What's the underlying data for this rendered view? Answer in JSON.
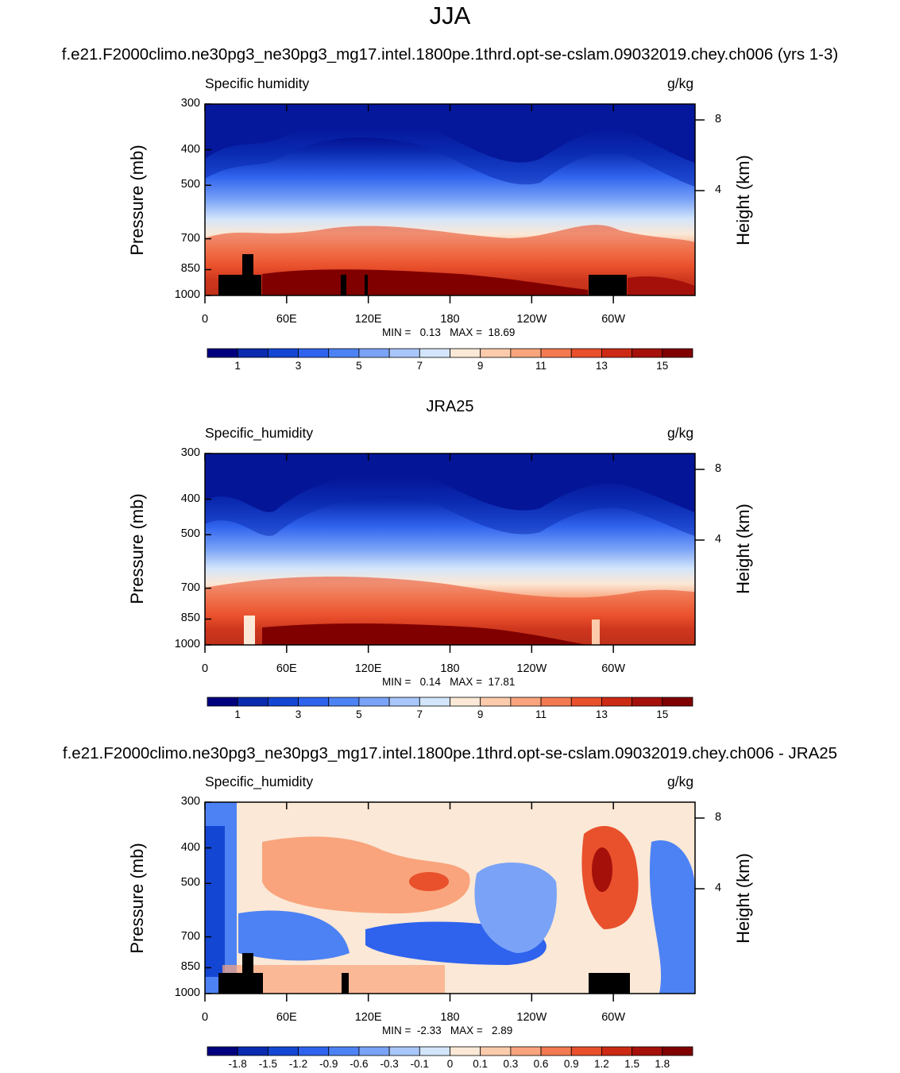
{
  "season_title": "JJA",
  "panels": [
    {
      "title": "f.e21.F2000climo.ne30pg3_ne30pg3_mg17.intel.1800pe.1thrd.opt-se-cslam.09032019.chey.ch006 (yrs 1-3)",
      "variable": "Specific humidity",
      "units": "g/kg",
      "stats": "MIN =   0.13   MAX =  18.69"
    },
    {
      "title": "JRA25",
      "variable": "Specific_humidity",
      "units": "g/kg",
      "stats": "MIN =   0.14   MAX =  17.81"
    },
    {
      "title": "f.e21.F2000climo.ne30pg3_ne30pg3_mg17.intel.1800pe.1thrd.opt-se-cslam.09032019.chey.ch006 - JRA25",
      "variable": "Specific_humidity",
      "units": "g/kg",
      "stats": "MIN =  -2.33   MAX =   2.89"
    }
  ],
  "axes": {
    "ylabel": "Pressure (mb)",
    "ylabel_right": "Height (km)",
    "pressure_ticks": [
      "300",
      "400",
      "500",
      "700",
      "850",
      "1000"
    ],
    "height_ticks": [
      "8",
      "4"
    ],
    "lon_ticks": [
      "0",
      "60E",
      "120E",
      "180",
      "120W",
      "60W"
    ]
  },
  "colorbars": {
    "full_field": {
      "colors": [
        "#00007f",
        "#0a2ab0",
        "#1446d4",
        "#2f63ee",
        "#4d82f4",
        "#7aa3f7",
        "#a8c6f9",
        "#d3e5fb",
        "#fbe8d6",
        "#fccbac",
        "#f9a47c",
        "#f37a50",
        "#e9502c",
        "#cc2a14",
        "#a5110a",
        "#800000"
      ],
      "labels": [
        "1",
        "3",
        "5",
        "7",
        "9",
        "11",
        "13",
        "15"
      ]
    },
    "difference": {
      "colors": [
        "#00007f",
        "#0a2ab0",
        "#1446d4",
        "#2f63ee",
        "#4d82f4",
        "#7aa3f7",
        "#a8c6f9",
        "#d3e5fb",
        "#fbe8d6",
        "#fccbac",
        "#f9a47c",
        "#f37a50",
        "#e9502c",
        "#cc2a14",
        "#a5110a",
        "#800000"
      ],
      "labels": [
        "-1.8",
        "-1.5",
        "-1.2",
        "-0.9",
        "-0.6",
        "-0.3",
        "-0.1",
        "0",
        "0.1",
        "0.3",
        "0.6",
        "0.9",
        "1.2",
        "1.5",
        "1.8"
      ]
    }
  },
  "chart_data": [
    {
      "type": "heatmap",
      "title": "f.e21.F2000climo.ne30pg3_ne30pg3_mg17.intel.1800pe.1thrd.opt-se-cslam.09032019.chey.ch006 (yrs 1-3)",
      "field": "Specific humidity",
      "units": "g/kg",
      "x_range": [
        0,
        360
      ],
      "y_range_mb": [
        1000,
        300
      ],
      "min": 0.13,
      "max": 18.69,
      "contour_levels": [
        1,
        2,
        3,
        4,
        5,
        6,
        7,
        8,
        9,
        10,
        11,
        12,
        13,
        14,
        15
      ]
    },
    {
      "type": "heatmap",
      "title": "JRA25",
      "field": "Specific_humidity",
      "units": "g/kg",
      "x_range": [
        0,
        360
      ],
      "y_range_mb": [
        1000,
        300
      ],
      "min": 0.14,
      "max": 17.81,
      "contour_levels": [
        1,
        2,
        3,
        4,
        5,
        6,
        7,
        8,
        9,
        10,
        11,
        12,
        13,
        14,
        15
      ]
    },
    {
      "type": "heatmap",
      "title": "f.e21.F2000climo.ne30pg3_ne30pg3_mg17.intel.1800pe.1thrd.opt-se-cslam.09032019.chey.ch006 - JRA25",
      "field": "Specific_humidity",
      "units": "g/kg",
      "x_range": [
        0,
        360
      ],
      "y_range_mb": [
        1000,
        300
      ],
      "min": -2.33,
      "max": 2.89,
      "contour_levels": [
        -1.8,
        -1.5,
        -1.2,
        -0.9,
        -0.6,
        -0.3,
        -0.1,
        0,
        0.1,
        0.3,
        0.6,
        0.9,
        1.2,
        1.5,
        1.8
      ]
    }
  ]
}
